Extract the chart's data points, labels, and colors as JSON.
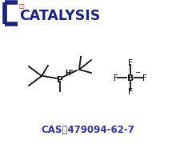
{
  "bg_color": "#ffffff",
  "logo_color": "#1a237e",
  "logo_text": "CATALYSIS",
  "logo_chinese": "润宇",
  "logo_bracket_color": "#1a237e",
  "cas_text": "CAS：479094-62-7",
  "cas_color": "#3333aa",
  "mol_color": "#111111",
  "lw": 1.3,
  "P_label": "P",
  "H_label": "H",
  "plus_label": "+",
  "B_label": "B",
  "minus_label": "−",
  "F_label": "F"
}
